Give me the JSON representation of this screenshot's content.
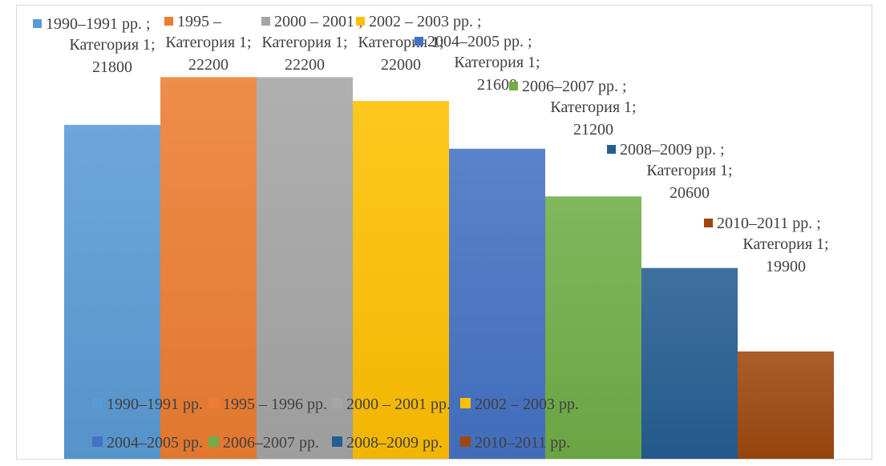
{
  "chart_data": {
    "type": "bar",
    "title": "",
    "xlabel": "",
    "ylabel": "",
    "category_label": "Категория 1",
    "categories": [
      "Категория 1"
    ],
    "ylim": [
      19000,
      22800
    ],
    "grid": false,
    "legend_position": "bottom",
    "series": [
      {
        "name": "1990–1991 pp.",
        "short_name": "1990–1991 pp.",
        "values": [
          21800
        ],
        "color": "#5b9bd5"
      },
      {
        "name": "1995 – 1996 pp.",
        "short_name": "1995 –",
        "values": [
          22200
        ],
        "color": "#ed7d31"
      },
      {
        "name": "2000 – 2001 pp.",
        "short_name": "2000 – 2001",
        "values": [
          22200
        ],
        "color": "#a5a5a5"
      },
      {
        "name": "2002 – 2003 pp.",
        "short_name": "2002 – 2003 pp.",
        "values": [
          22000
        ],
        "color": "#ffc000"
      },
      {
        "name": "2004–2005 pp.",
        "short_name": "2004–2005 pp.",
        "values": [
          21600
        ],
        "color": "#4472c4"
      },
      {
        "name": "2006–2007 pp.",
        "short_name": "2006–2007 pp.",
        "values": [
          21200
        ],
        "color": "#70ad47"
      },
      {
        "name": "2008–2009 pp.",
        "short_name": "2008–2009 pp.",
        "values": [
          20600
        ],
        "color": "#255e91"
      },
      {
        "name": "2010–2011 pp.",
        "short_name": "2010–2011 pp.",
        "values": [
          19900
        ],
        "color": "#9e480e"
      }
    ]
  }
}
